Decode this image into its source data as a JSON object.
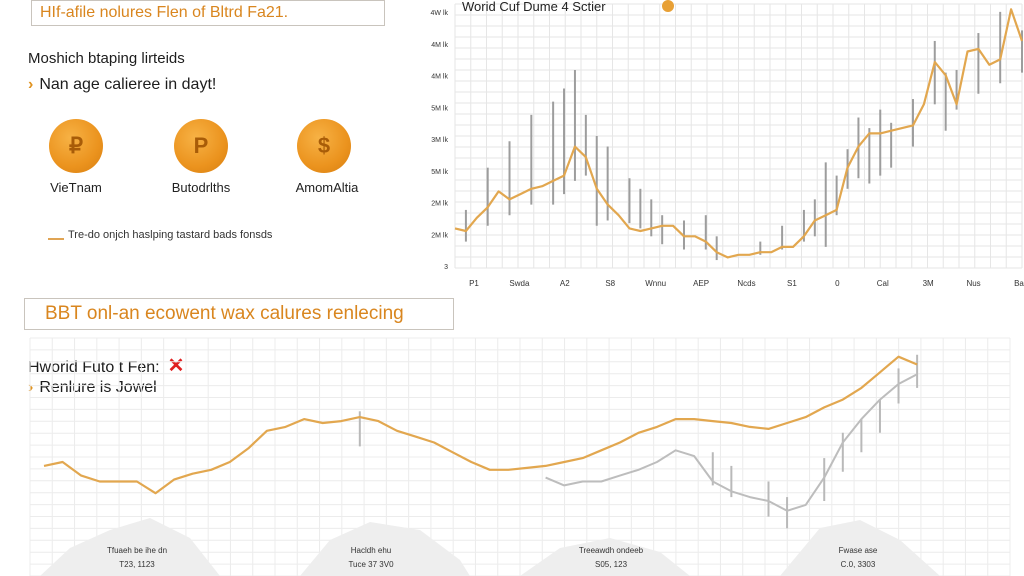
{
  "header": {
    "title": "HIf-afile nolures Flen of Bltrd Fa21."
  },
  "left_panel": {
    "subtitle": "Moshich btaping lirteids",
    "bullet": "Nan age calieree in dayt!",
    "coins": [
      {
        "symbol": "₽",
        "label": "VieTnam"
      },
      {
        "symbol": "P",
        "label": "Butodrlths"
      },
      {
        "symbol": "$",
        "label": "AmomAltia"
      }
    ],
    "legend": "Tre-do onjch haslping tastard bads fonsds"
  },
  "section2": {
    "title": "BBT onl-an ecowent wax calures renlecing",
    "subtitle": "Hworid Futo t Fen:",
    "close_symbol": "✕",
    "bullet": "Renlure is Jowel"
  },
  "chart_data": [
    {
      "type": "line",
      "title": "Worid Cuf Dume 4 Sctier",
      "y_ticks": [
        "4W lk",
        "4M lk",
        "4M lk",
        "5M lk",
        "3M lk",
        "5M lk",
        "2M lk",
        "2M lk",
        "3"
      ],
      "x_ticks": [
        "P1",
        "Swda",
        "A2",
        "S8",
        "Wnnu",
        "AEP",
        "Ncds",
        "S1",
        "0",
        "Cal",
        "3M",
        "Nus",
        "Ba"
      ],
      "series_color": "#e2a74f",
      "line": [
        {
          "x": 0,
          "y": 0.15
        },
        {
          "x": 1,
          "y": 0.14
        },
        {
          "x": 2,
          "y": 0.19
        },
        {
          "x": 3,
          "y": 0.23
        },
        {
          "x": 4,
          "y": 0.29
        },
        {
          "x": 5,
          "y": 0.26
        },
        {
          "x": 6,
          "y": 0.28
        },
        {
          "x": 7,
          "y": 0.3
        },
        {
          "x": 8,
          "y": 0.31
        },
        {
          "x": 9,
          "y": 0.33
        },
        {
          "x": 10,
          "y": 0.35
        },
        {
          "x": 11,
          "y": 0.46
        },
        {
          "x": 12,
          "y": 0.42
        },
        {
          "x": 13,
          "y": 0.3
        },
        {
          "x": 14,
          "y": 0.24
        },
        {
          "x": 15,
          "y": 0.2
        },
        {
          "x": 16,
          "y": 0.15
        },
        {
          "x": 17,
          "y": 0.14
        },
        {
          "x": 18,
          "y": 0.15
        },
        {
          "x": 19,
          "y": 0.16
        },
        {
          "x": 20,
          "y": 0.16
        },
        {
          "x": 21,
          "y": 0.12
        },
        {
          "x": 22,
          "y": 0.12
        },
        {
          "x": 23,
          "y": 0.1
        },
        {
          "x": 24,
          "y": 0.06
        },
        {
          "x": 25,
          "y": 0.04
        },
        {
          "x": 26,
          "y": 0.05
        },
        {
          "x": 27,
          "y": 0.05
        },
        {
          "x": 28,
          "y": 0.06
        },
        {
          "x": 29,
          "y": 0.06
        },
        {
          "x": 30,
          "y": 0.08
        },
        {
          "x": 31,
          "y": 0.08
        },
        {
          "x": 32,
          "y": 0.12
        },
        {
          "x": 33,
          "y": 0.18
        },
        {
          "x": 34,
          "y": 0.2
        },
        {
          "x": 35,
          "y": 0.22
        },
        {
          "x": 36,
          "y": 0.38
        },
        {
          "x": 37,
          "y": 0.46
        },
        {
          "x": 38,
          "y": 0.51
        },
        {
          "x": 39,
          "y": 0.51
        },
        {
          "x": 40,
          "y": 0.52
        },
        {
          "x": 41,
          "y": 0.53
        },
        {
          "x": 42,
          "y": 0.54
        },
        {
          "x": 43,
          "y": 0.62
        },
        {
          "x": 44,
          "y": 0.78
        },
        {
          "x": 45,
          "y": 0.73
        },
        {
          "x": 46,
          "y": 0.62
        },
        {
          "x": 47,
          "y": 0.82
        },
        {
          "x": 48,
          "y": 0.83
        },
        {
          "x": 49,
          "y": 0.77
        },
        {
          "x": 50,
          "y": 0.79
        },
        {
          "x": 51,
          "y": 0.98
        },
        {
          "x": 52,
          "y": 0.86
        }
      ],
      "bars": [
        {
          "x": 1,
          "lo": 0.1,
          "hi": 0.22
        },
        {
          "x": 3,
          "lo": 0.16,
          "hi": 0.38
        },
        {
          "x": 5,
          "lo": 0.2,
          "hi": 0.48
        },
        {
          "x": 7,
          "lo": 0.24,
          "hi": 0.58
        },
        {
          "x": 9,
          "lo": 0.24,
          "hi": 0.63
        },
        {
          "x": 10,
          "lo": 0.28,
          "hi": 0.68
        },
        {
          "x": 11,
          "lo": 0.33,
          "hi": 0.75
        },
        {
          "x": 12,
          "lo": 0.35,
          "hi": 0.58
        },
        {
          "x": 13,
          "lo": 0.16,
          "hi": 0.5
        },
        {
          "x": 14,
          "lo": 0.18,
          "hi": 0.46
        },
        {
          "x": 16,
          "lo": 0.17,
          "hi": 0.34
        },
        {
          "x": 17,
          "lo": 0.15,
          "hi": 0.3
        },
        {
          "x": 18,
          "lo": 0.12,
          "hi": 0.26
        },
        {
          "x": 19,
          "lo": 0.09,
          "hi": 0.2
        },
        {
          "x": 21,
          "lo": 0.07,
          "hi": 0.18
        },
        {
          "x": 23,
          "lo": 0.07,
          "hi": 0.2
        },
        {
          "x": 24,
          "lo": 0.03,
          "hi": 0.12
        },
        {
          "x": 28,
          "lo": 0.05,
          "hi": 0.1
        },
        {
          "x": 30,
          "lo": 0.07,
          "hi": 0.16
        },
        {
          "x": 32,
          "lo": 0.1,
          "hi": 0.22
        },
        {
          "x": 33,
          "lo": 0.12,
          "hi": 0.26
        },
        {
          "x": 34,
          "lo": 0.08,
          "hi": 0.4
        },
        {
          "x": 35,
          "lo": 0.2,
          "hi": 0.35
        },
        {
          "x": 36,
          "lo": 0.3,
          "hi": 0.45
        },
        {
          "x": 37,
          "lo": 0.34,
          "hi": 0.57
        },
        {
          "x": 38,
          "lo": 0.32,
          "hi": 0.53
        },
        {
          "x": 39,
          "lo": 0.35,
          "hi": 0.6
        },
        {
          "x": 40,
          "lo": 0.38,
          "hi": 0.55
        },
        {
          "x": 42,
          "lo": 0.46,
          "hi": 0.64
        },
        {
          "x": 44,
          "lo": 0.62,
          "hi": 0.86
        },
        {
          "x": 45,
          "lo": 0.52,
          "hi": 0.74
        },
        {
          "x": 46,
          "lo": 0.6,
          "hi": 0.75
        },
        {
          "x": 48,
          "lo": 0.66,
          "hi": 0.89
        },
        {
          "x": 50,
          "lo": 0.7,
          "hi": 0.97
        },
        {
          "x": 52,
          "lo": 0.74,
          "hi": 0.9
        }
      ]
    },
    {
      "type": "line",
      "series_color": "#e2a74f",
      "secondary_color": "#bdbdbd",
      "line": [
        {
          "x": 0,
          "y": 0.38
        },
        {
          "x": 1,
          "y": 0.4
        },
        {
          "x": 2,
          "y": 0.33
        },
        {
          "x": 3,
          "y": 0.3
        },
        {
          "x": 4,
          "y": 0.3
        },
        {
          "x": 5,
          "y": 0.3
        },
        {
          "x": 6,
          "y": 0.24
        },
        {
          "x": 7,
          "y": 0.31
        },
        {
          "x": 8,
          "y": 0.34
        },
        {
          "x": 9,
          "y": 0.36
        },
        {
          "x": 10,
          "y": 0.4
        },
        {
          "x": 11,
          "y": 0.47
        },
        {
          "x": 12,
          "y": 0.56
        },
        {
          "x": 13,
          "y": 0.58
        },
        {
          "x": 14,
          "y": 0.62
        },
        {
          "x": 15,
          "y": 0.6
        },
        {
          "x": 16,
          "y": 0.61
        },
        {
          "x": 17,
          "y": 0.63
        },
        {
          "x": 18,
          "y": 0.61
        },
        {
          "x": 19,
          "y": 0.56
        },
        {
          "x": 20,
          "y": 0.53
        },
        {
          "x": 21,
          "y": 0.5
        },
        {
          "x": 22,
          "y": 0.45
        },
        {
          "x": 23,
          "y": 0.4
        },
        {
          "x": 24,
          "y": 0.36
        },
        {
          "x": 25,
          "y": 0.36
        },
        {
          "x": 26,
          "y": 0.37
        },
        {
          "x": 27,
          "y": 0.38
        },
        {
          "x": 28,
          "y": 0.4
        },
        {
          "x": 29,
          "y": 0.42
        },
        {
          "x": 30,
          "y": 0.46
        },
        {
          "x": 31,
          "y": 0.5
        },
        {
          "x": 32,
          "y": 0.55
        },
        {
          "x": 33,
          "y": 0.58
        },
        {
          "x": 34,
          "y": 0.62
        },
        {
          "x": 35,
          "y": 0.62
        },
        {
          "x": 36,
          "y": 0.61
        },
        {
          "x": 37,
          "y": 0.6
        },
        {
          "x": 38,
          "y": 0.58
        },
        {
          "x": 39,
          "y": 0.57
        },
        {
          "x": 40,
          "y": 0.6
        },
        {
          "x": 41,
          "y": 0.63
        },
        {
          "x": 42,
          "y": 0.68
        },
        {
          "x": 43,
          "y": 0.72
        },
        {
          "x": 44,
          "y": 0.78
        },
        {
          "x": 45,
          "y": 0.86
        },
        {
          "x": 46,
          "y": 0.94
        },
        {
          "x": 47,
          "y": 0.9
        }
      ],
      "secondary": [
        {
          "x": 27,
          "y": 0.32
        },
        {
          "x": 28,
          "y": 0.28
        },
        {
          "x": 29,
          "y": 0.3
        },
        {
          "x": 30,
          "y": 0.3
        },
        {
          "x": 31,
          "y": 0.33
        },
        {
          "x": 32,
          "y": 0.36
        },
        {
          "x": 33,
          "y": 0.4
        },
        {
          "x": 34,
          "y": 0.46
        },
        {
          "x": 35,
          "y": 0.43
        },
        {
          "x": 36,
          "y": 0.3
        },
        {
          "x": 37,
          "y": 0.25
        },
        {
          "x": 38,
          "y": 0.22
        },
        {
          "x": 39,
          "y": 0.2
        },
        {
          "x": 40,
          "y": 0.15
        },
        {
          "x": 41,
          "y": 0.18
        },
        {
          "x": 42,
          "y": 0.32
        },
        {
          "x": 43,
          "y": 0.5
        },
        {
          "x": 44,
          "y": 0.62
        },
        {
          "x": 45,
          "y": 0.72
        },
        {
          "x": 46,
          "y": 0.8
        },
        {
          "x": 47,
          "y": 0.85
        }
      ],
      "bars": [
        {
          "x": 17,
          "lo": 0.48,
          "hi": 0.66
        },
        {
          "x": 36,
          "lo": 0.28,
          "hi": 0.45
        },
        {
          "x": 37,
          "lo": 0.22,
          "hi": 0.38
        },
        {
          "x": 39,
          "lo": 0.12,
          "hi": 0.3
        },
        {
          "x": 40,
          "lo": 0.06,
          "hi": 0.22
        },
        {
          "x": 42,
          "lo": 0.2,
          "hi": 0.42
        },
        {
          "x": 43,
          "lo": 0.35,
          "hi": 0.55
        },
        {
          "x": 44,
          "lo": 0.45,
          "hi": 0.62
        },
        {
          "x": 45,
          "lo": 0.55,
          "hi": 0.72
        },
        {
          "x": 46,
          "lo": 0.7,
          "hi": 0.88
        },
        {
          "x": 47,
          "lo": 0.78,
          "hi": 0.95
        }
      ],
      "annotations": [
        {
          "line1": "Tfuaeh be ihe dn",
          "line2": "T23, 1123"
        },
        {
          "line1": "Hacldh ehu",
          "line2": "Tuce 37 3V0"
        },
        {
          "line1": "Treeawdh ondeeb",
          "line2": "S05, 123"
        },
        {
          "line1": "Fwase ase",
          "line2": "C.0, 3303"
        }
      ]
    }
  ]
}
